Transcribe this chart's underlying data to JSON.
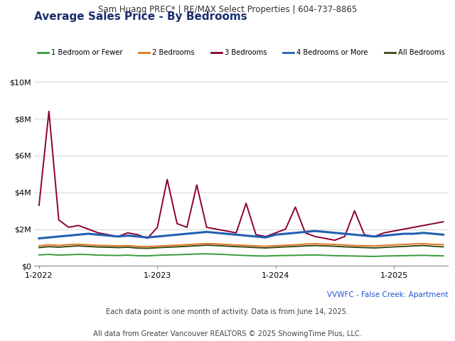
{
  "header": "Sam Huang PREC* | RE/MAX Select Properties | 604-737-8865",
  "title": "Average Sales Price - By Bedrooms",
  "footer1": "VVWFC - False Creek: Apartment",
  "footer2": "Each data point is one month of activity. Data is from June 14, 2025.",
  "footer3": "All data from Greater Vancouver REALTORS © 2025 ShowingTime Plus, LLC.",
  "xlabel_ticks": [
    "1-2022",
    "1-2023",
    "1-2024",
    "1-2025"
  ],
  "ylim": [
    0,
    10000000
  ],
  "colors": {
    "1br": "#3a9a3a",
    "2br": "#e07820",
    "3br": "#8b0033",
    "4br": "#2060b0",
    "all": "#3a4a14"
  },
  "legend_labels": [
    "1 Bedroom or Fewer",
    "2 Bedrooms",
    "3 Bedrooms",
    "4 Bedrooms or More",
    "All Bedrooms"
  ],
  "background_color": "#ffffff",
  "header_bg": "#e0e0e0",
  "n_months": 42,
  "data": {
    "1br": [
      600000,
      630000,
      590000,
      610000,
      630000,
      620000,
      590000,
      580000,
      570000,
      590000,
      560000,
      550000,
      580000,
      600000,
      610000,
      630000,
      650000,
      660000,
      640000,
      620000,
      590000,
      570000,
      550000,
      540000,
      560000,
      570000,
      580000,
      590000,
      600000,
      580000,
      560000,
      550000,
      540000,
      530000,
      520000,
      540000,
      550000,
      560000,
      570000,
      580000,
      560000,
      550000
    ],
    "2br": [
      1100000,
      1150000,
      1120000,
      1160000,
      1180000,
      1150000,
      1120000,
      1110000,
      1090000,
      1110000,
      1060000,
      1050000,
      1080000,
      1110000,
      1130000,
      1160000,
      1190000,
      1220000,
      1200000,
      1170000,
      1140000,
      1120000,
      1090000,
      1070000,
      1100000,
      1130000,
      1150000,
      1190000,
      1210000,
      1190000,
      1170000,
      1140000,
      1110000,
      1100000,
      1090000,
      1120000,
      1150000,
      1170000,
      1200000,
      1210000,
      1180000,
      1160000
    ],
    "3br": [
      3300000,
      8400000,
      2500000,
      2100000,
      2200000,
      2000000,
      1800000,
      1700000,
      1600000,
      1800000,
      1700000,
      1500000,
      2100000,
      4700000,
      2300000,
      2100000,
      4400000,
      2100000,
      2000000,
      1900000,
      1800000,
      3400000,
      1700000,
      1600000,
      1800000,
      2000000,
      3200000,
      1800000,
      1600000,
      1500000,
      1400000,
      1600000,
      3000000,
      1700000,
      1600000,
      1800000,
      1900000,
      2000000,
      2100000,
      2200000,
      2300000,
      2400000
    ],
    "4br": [
      1500000,
      1550000,
      1600000,
      1650000,
      1700000,
      1750000,
      1700000,
      1650000,
      1600000,
      1650000,
      1600000,
      1550000,
      1600000,
      1650000,
      1700000,
      1750000,
      1800000,
      1850000,
      1800000,
      1750000,
      1700000,
      1650000,
      1600000,
      1550000,
      1700000,
      1750000,
      1800000,
      1850000,
      1900000,
      1850000,
      1800000,
      1750000,
      1700000,
      1650000,
      1600000,
      1650000,
      1700000,
      1750000,
      1750000,
      1800000,
      1750000,
      1700000
    ],
    "all": [
      1000000,
      1050000,
      1020000,
      1060000,
      1090000,
      1060000,
      1030000,
      1020000,
      1000000,
      1020000,
      970000,
      960000,
      990000,
      1020000,
      1040000,
      1070000,
      1100000,
      1130000,
      1110000,
      1080000,
      1050000,
      1030000,
      1000000,
      980000,
      1010000,
      1040000,
      1060000,
      1090000,
      1110000,
      1090000,
      1070000,
      1040000,
      1020000,
      1000000,
      980000,
      1010000,
      1040000,
      1060000,
      1090000,
      1110000,
      1070000,
      1040000
    ]
  }
}
